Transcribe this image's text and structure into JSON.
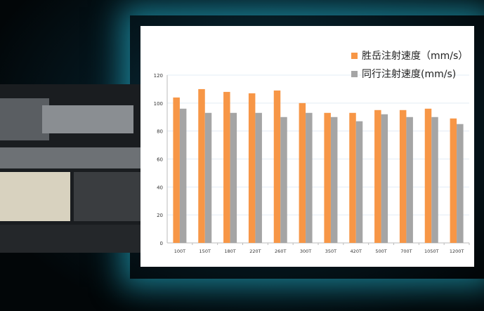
{
  "chart_data": {
    "type": "bar",
    "categories": [
      "100T",
      "150T",
      "180T",
      "220T",
      "260T",
      "300T",
      "350T",
      "420T",
      "500T",
      "700T",
      "1050T",
      "1200T"
    ],
    "series": [
      {
        "name": "胜岳注射速度（mm/s）",
        "color": "#f79646",
        "values": [
          104,
          110,
          108,
          107,
          109,
          100,
          93,
          93,
          95,
          95,
          96,
          89
        ]
      },
      {
        "name": "同行注射速度(mm/s)",
        "color": "#a5a5a5",
        "values": [
          96,
          93,
          93,
          93,
          90,
          93,
          90,
          87,
          92,
          90,
          90,
          85
        ]
      }
    ],
    "ylim": [
      0,
      120
    ],
    "yticks": [
      0,
      20,
      40,
      60,
      80,
      100,
      120
    ],
    "grid": true,
    "legend": "top-right"
  }
}
